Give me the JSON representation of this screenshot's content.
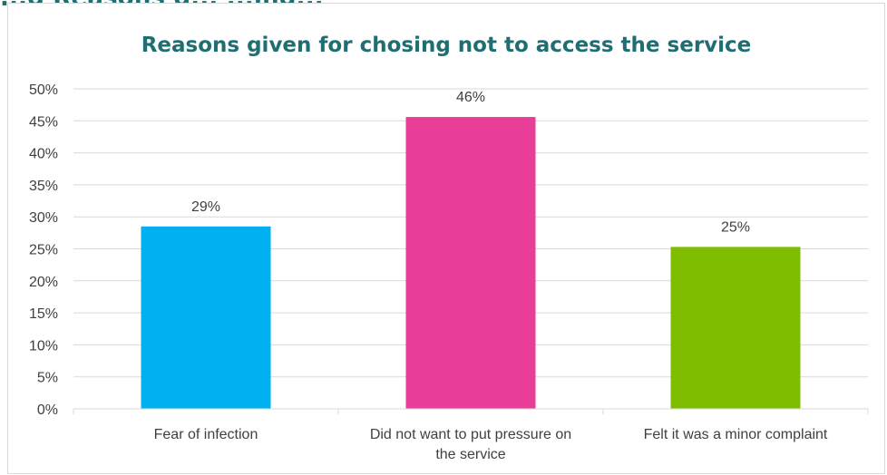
{
  "page_heading_partial": "...g Reasons g... ...ing...",
  "colors": {
    "title": "#1f6e72",
    "bar_1": "#00b0f0",
    "bar_2": "#e83e97",
    "bar_3": "#7fbd00",
    "gridline": "#d9d9d9",
    "text": "#404040"
  },
  "chart_data": {
    "type": "bar",
    "title": "Reasons given for chosing not to access the service",
    "categories": [
      "Fear of infection",
      "Did not want to put pressure on the service",
      "Felt it was a minor complaint"
    ],
    "values": [
      28.5,
      45.6,
      25.3
    ],
    "data_labels": [
      "29%",
      "46%",
      "25%"
    ],
    "ylim": [
      0,
      50
    ],
    "y_ticks": [
      "0%",
      "5%",
      "10%",
      "15%",
      "20%",
      "25%",
      "30%",
      "35%",
      "40%",
      "45%",
      "50%"
    ],
    "grid": true,
    "legend": "none",
    "xlabel": "",
    "ylabel": ""
  }
}
